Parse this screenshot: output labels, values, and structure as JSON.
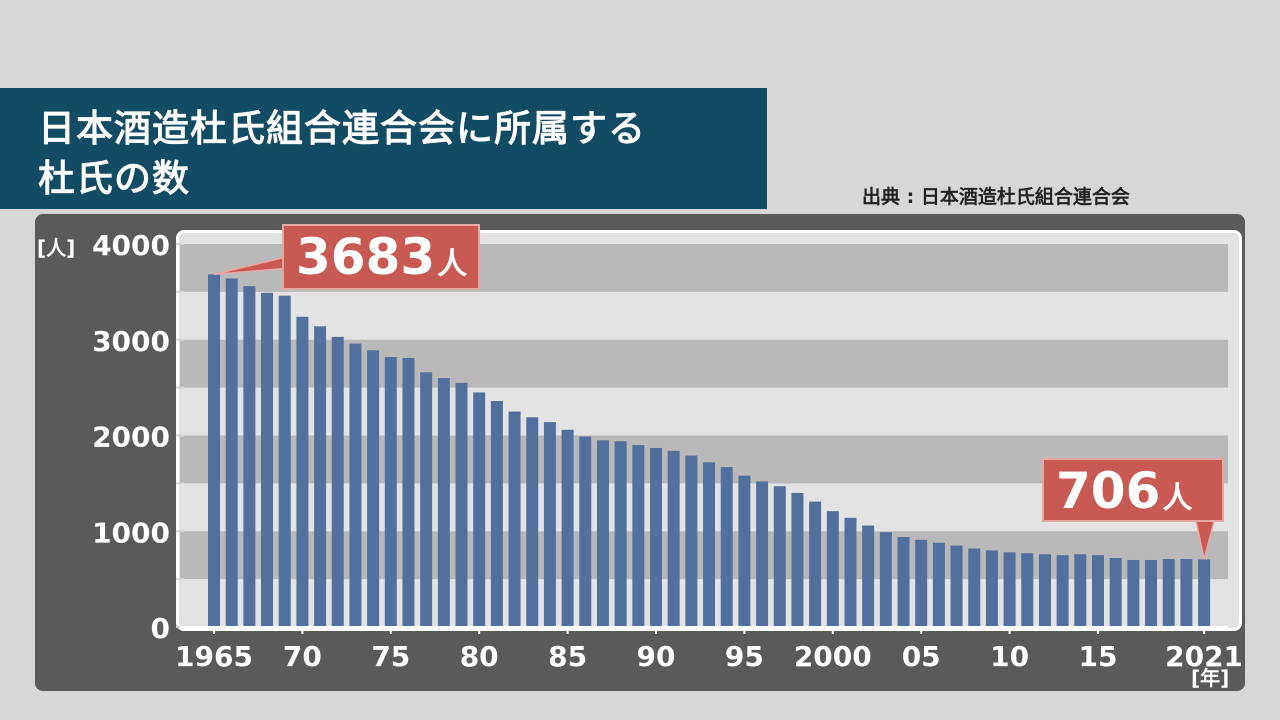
{
  "title": {
    "line1": "日本酒造杜氏組合連合会に所属する",
    "line2": "杜氏の数"
  },
  "source": "出典 : 日本酒造杜氏組合連合会",
  "colors": {
    "bar": "#52709e",
    "title_bg": "#124b64",
    "callout": "#c85a53",
    "panel": "#5a5a5a",
    "band_dark": "#b9b9b9",
    "band_light": "#e3e3e3"
  },
  "chart_data": {
    "type": "bar",
    "ylabel": "[人]",
    "xlabel": "[年]",
    "ylim": [
      0,
      4000
    ],
    "yticks": [
      0,
      1000,
      2000,
      3000,
      4000
    ],
    "xtick_labels": [
      {
        "year": 1965,
        "label": "1965"
      },
      {
        "year": 1970,
        "label": "70"
      },
      {
        "year": 1975,
        "label": "75"
      },
      {
        "year": 1980,
        "label": "80"
      },
      {
        "year": 1985,
        "label": "85"
      },
      {
        "year": 1990,
        "label": "90"
      },
      {
        "year": 1995,
        "label": "95"
      },
      {
        "year": 2000,
        "label": "2000"
      },
      {
        "year": 2005,
        "label": "05"
      },
      {
        "year": 2010,
        "label": "10"
      },
      {
        "year": 2015,
        "label": "15"
      },
      {
        "year": 2021,
        "label": "2021"
      }
    ],
    "x": [
      1965,
      1966,
      1967,
      1968,
      1969,
      1970,
      1971,
      1972,
      1973,
      1974,
      1975,
      1976,
      1977,
      1978,
      1979,
      1980,
      1981,
      1982,
      1983,
      1984,
      1985,
      1986,
      1987,
      1988,
      1989,
      1990,
      1991,
      1992,
      1993,
      1994,
      1995,
      1996,
      1997,
      1998,
      1999,
      2000,
      2001,
      2002,
      2003,
      2004,
      2005,
      2006,
      2007,
      2008,
      2009,
      2010,
      2011,
      2012,
      2013,
      2014,
      2015,
      2016,
      2017,
      2018,
      2019,
      2020,
      2021
    ],
    "values": [
      3683,
      3640,
      3560,
      3490,
      3460,
      3240,
      3140,
      3030,
      2960,
      2890,
      2820,
      2810,
      2660,
      2600,
      2550,
      2450,
      2360,
      2250,
      2190,
      2140,
      2060,
      1990,
      1950,
      1940,
      1900,
      1870,
      1840,
      1790,
      1720,
      1670,
      1580,
      1520,
      1470,
      1400,
      1310,
      1210,
      1140,
      1060,
      990,
      940,
      910,
      880,
      850,
      820,
      800,
      780,
      770,
      760,
      750,
      760,
      750,
      720,
      700,
      700,
      710,
      710,
      706
    ],
    "annotations": [
      {
        "year": 1965,
        "number": "3683",
        "unit": "人"
      },
      {
        "year": 2021,
        "number": "706",
        "unit": "人"
      }
    ]
  }
}
